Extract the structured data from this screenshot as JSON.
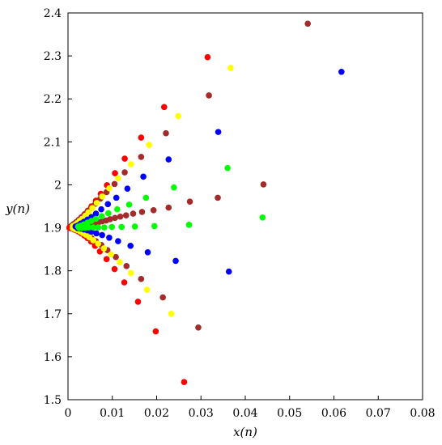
{
  "chart_data": {
    "type": "scatter",
    "xlabel": "x(n)",
    "ylabel": "y(n)",
    "xlim": [
      0,
      0.08
    ],
    "ylim": [
      1.5,
      2.4
    ],
    "xticks": [
      "0",
      "0.01",
      "0.02",
      "0.03",
      "0.04",
      "0.05",
      "0.06",
      "0.07",
      "0.08"
    ],
    "yticks": [
      "1.5",
      "1.6",
      "1.7",
      "1.8",
      "1.9",
      "2",
      "2.1",
      "2.2",
      "2.3",
      "2.4"
    ],
    "grid": false,
    "series": [
      {
        "color": "#ff0000",
        "points": [
          [
            0.0315,
            2.297
          ],
          [
            0.0217,
            2.181
          ],
          [
            0.0165,
            2.11
          ],
          [
            0.0128,
            2.061
          ],
          [
            0.0106,
            2.027
          ],
          [
            0.0088,
            1.999
          ],
          [
            0.0074,
            1.979
          ],
          [
            0.0063,
            1.963
          ],
          [
            0.0053,
            1.95
          ],
          [
            0.0045,
            1.94
          ],
          [
            0.0038,
            1.932
          ],
          [
            0.0031,
            1.925
          ],
          [
            0.0025,
            1.919
          ],
          [
            0.002,
            1.914
          ],
          [
            0.0015,
            1.91
          ],
          [
            0.0011,
            1.907
          ],
          [
            0.0007,
            1.904
          ],
          [
            0.0004,
            1.902
          ],
          [
            0.0262,
            1.541
          ],
          [
            0.0198,
            1.659
          ],
          [
            0.0158,
            1.728
          ],
          [
            0.0127,
            1.773
          ],
          [
            0.0105,
            1.804
          ],
          [
            0.0087,
            1.827
          ],
          [
            0.0072,
            1.845
          ],
          [
            0.0061,
            1.858
          ],
          [
            0.0052,
            1.868
          ],
          [
            0.0044,
            1.876
          ],
          [
            0.0037,
            1.882
          ],
          [
            0.003,
            1.887
          ],
          [
            0.0024,
            1.891
          ],
          [
            0.0019,
            1.894
          ],
          [
            0.0014,
            1.896
          ],
          [
            0.001,
            1.898
          ],
          [
            0.0006,
            1.899
          ],
          [
            0.0003,
            1.9
          ]
        ]
      },
      {
        "color": "#a52a2a",
        "points": [
          [
            0.0541,
            2.375
          ],
          [
            0.0318,
            2.208
          ],
          [
            0.0221,
            2.12
          ],
          [
            0.0165,
            2.065
          ],
          [
            0.0128,
            2.029
          ],
          [
            0.0105,
            2.002
          ],
          [
            0.0087,
            1.983
          ],
          [
            0.0073,
            1.968
          ],
          [
            0.0062,
            1.956
          ],
          [
            0.0052,
            1.946
          ],
          [
            0.0044,
            1.938
          ],
          [
            0.0037,
            1.931
          ],
          [
            0.003,
            1.924
          ],
          [
            0.0024,
            1.918
          ],
          [
            0.0018,
            1.913
          ],
          [
            0.0013,
            1.909
          ],
          [
            0.0009,
            1.905
          ],
          [
            0.0441,
            2.001
          ],
          [
            0.0338,
            1.97
          ],
          [
            0.0275,
            1.961
          ],
          [
            0.0227,
            1.947
          ],
          [
            0.0193,
            1.941
          ],
          [
            0.0167,
            1.937
          ],
          [
            0.0147,
            1.933
          ],
          [
            0.0131,
            1.929
          ],
          [
            0.0118,
            1.926
          ],
          [
            0.0106,
            1.923
          ],
          [
            0.0095,
            1.92
          ],
          [
            0.0086,
            1.917
          ],
          [
            0.0077,
            1.915
          ],
          [
            0.0069,
            1.913
          ],
          [
            0.0061,
            1.911
          ],
          [
            0.0054,
            1.909
          ],
          [
            0.0047,
            1.907
          ],
          [
            0.004,
            1.906
          ],
          [
            0.0033,
            1.904
          ],
          [
            0.0026,
            1.903
          ],
          [
            0.0019,
            1.902
          ],
          [
            0.0012,
            1.901
          ],
          [
            0.0294,
            1.668
          ],
          [
            0.0214,
            1.738
          ],
          [
            0.0165,
            1.781
          ],
          [
            0.0132,
            1.811
          ],
          [
            0.0108,
            1.832
          ],
          [
            0.0089,
            1.848
          ],
          [
            0.0075,
            1.86
          ],
          [
            0.0063,
            1.869
          ],
          [
            0.0053,
            1.876
          ],
          [
            0.0044,
            1.882
          ],
          [
            0.0036,
            1.887
          ],
          [
            0.0029,
            1.891
          ],
          [
            0.0022,
            1.894
          ],
          [
            0.0016,
            1.897
          ],
          [
            0.001,
            1.899
          ]
        ]
      },
      {
        "color": "#ffff00",
        "points": [
          [
            0.0367,
            2.272
          ],
          [
            0.0249,
            2.16
          ],
          [
            0.0183,
            2.093
          ],
          [
            0.0142,
            2.048
          ],
          [
            0.0113,
            2.015
          ],
          [
            0.0093,
            1.992
          ],
          [
            0.0077,
            1.973
          ],
          [
            0.0065,
            1.958
          ],
          [
            0.0055,
            1.946
          ],
          [
            0.0046,
            1.936
          ],
          [
            0.0039,
            1.928
          ],
          [
            0.0032,
            1.921
          ],
          [
            0.0026,
            1.916
          ],
          [
            0.0021,
            1.911
          ],
          [
            0.0016,
            1.907
          ],
          [
            0.0011,
            1.904
          ],
          [
            0.0233,
            1.7
          ],
          [
            0.0178,
            1.756
          ],
          [
            0.0142,
            1.795
          ],
          [
            0.0117,
            1.82
          ],
          [
            0.0097,
            1.838
          ],
          [
            0.0081,
            1.852
          ],
          [
            0.0068,
            1.863
          ],
          [
            0.0057,
            1.871
          ],
          [
            0.0048,
            1.878
          ],
          [
            0.004,
            1.884
          ],
          [
            0.0033,
            1.888
          ],
          [
            0.0027,
            1.892
          ],
          [
            0.0021,
            1.895
          ],
          [
            0.0016,
            1.897
          ],
          [
            0.0011,
            1.899
          ]
        ]
      },
      {
        "color": "#0000ff",
        "points": [
          [
            0.0617,
            2.263
          ],
          [
            0.0339,
            2.123
          ],
          [
            0.0227,
            2.059
          ],
          [
            0.017,
            2.019
          ],
          [
            0.0134,
            1.991
          ],
          [
            0.0109,
            1.97
          ],
          [
            0.009,
            1.955
          ],
          [
            0.0075,
            1.943
          ],
          [
            0.0063,
            1.933
          ],
          [
            0.0053,
            1.925
          ],
          [
            0.0044,
            1.919
          ],
          [
            0.0036,
            1.914
          ],
          [
            0.0029,
            1.91
          ],
          [
            0.0023,
            1.906
          ],
          [
            0.0017,
            1.903
          ],
          [
            0.0363,
            1.798
          ],
          [
            0.0243,
            1.823
          ],
          [
            0.018,
            1.843
          ],
          [
            0.0141,
            1.858
          ],
          [
            0.0113,
            1.869
          ],
          [
            0.0093,
            1.877
          ],
          [
            0.0077,
            1.883
          ],
          [
            0.0064,
            1.887
          ],
          [
            0.0053,
            1.891
          ],
          [
            0.0044,
            1.894
          ],
          [
            0.0036,
            1.896
          ],
          [
            0.0029,
            1.898
          ],
          [
            0.0022,
            1.899
          ]
        ]
      },
      {
        "color": "#00ff00",
        "points": [
          [
            0.036,
            2.039
          ],
          [
            0.0239,
            1.994
          ],
          [
            0.0176,
            1.97
          ],
          [
            0.0138,
            1.954
          ],
          [
            0.0111,
            1.943
          ],
          [
            0.0091,
            1.934
          ],
          [
            0.0076,
            1.927
          ],
          [
            0.0063,
            1.921
          ],
          [
            0.0053,
            1.916
          ],
          [
            0.0044,
            1.912
          ],
          [
            0.0036,
            1.908
          ],
          [
            0.0029,
            1.905
          ],
          [
            0.0023,
            1.903
          ],
          [
            0.0439,
            1.924
          ],
          [
            0.0273,
            1.907
          ],
          [
            0.0195,
            1.904
          ],
          [
            0.0151,
            1.903
          ],
          [
            0.0121,
            1.902
          ],
          [
            0.0099,
            1.902
          ],
          [
            0.0082,
            1.901
          ],
          [
            0.0068,
            1.901
          ],
          [
            0.0057,
            1.901
          ],
          [
            0.0047,
            1.901
          ],
          [
            0.0039,
            1.9
          ],
          [
            0.0032,
            1.9
          ],
          [
            0.0025,
            1.9
          ]
        ]
      }
    ]
  }
}
